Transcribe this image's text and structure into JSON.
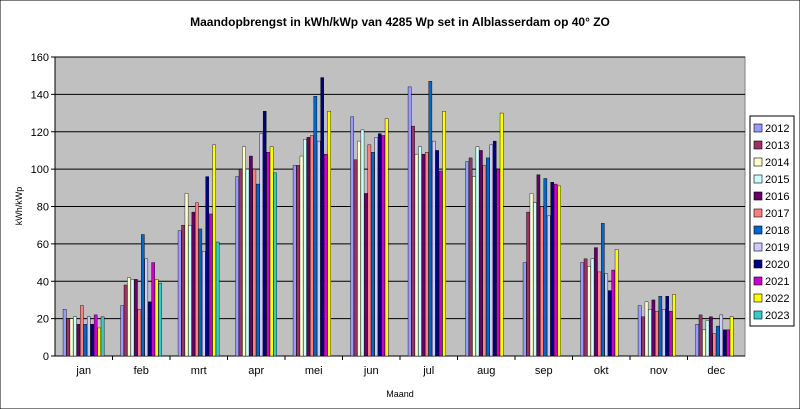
{
  "chart_data": {
    "type": "bar",
    "title": "Maandopbrengst in kWh/kWp van 4285 Wp set in Alblasserdam op 40° ZO",
    "xlabel": "Maand",
    "ylabel": "kWh/kWp",
    "ylim": [
      0,
      160
    ],
    "yticks": [
      0,
      20,
      40,
      60,
      80,
      100,
      120,
      140,
      160
    ],
    "grid": true,
    "legend_position": "right",
    "categories": [
      "jan",
      "feb",
      "mrt",
      "apr",
      "mei",
      "jun",
      "jul",
      "aug",
      "sep",
      "okt",
      "nov",
      "dec"
    ],
    "series": [
      {
        "name": "2012",
        "color": "#9999ff",
        "values": [
          25,
          27,
          67,
          96,
          102,
          128,
          144,
          104,
          50,
          50,
          27,
          17
        ]
      },
      {
        "name": "2013",
        "color": "#993366",
        "values": [
          20,
          38,
          70,
          100,
          102,
          105,
          123,
          106,
          77,
          52,
          21,
          22
        ]
      },
      {
        "name": "2014",
        "color": "#ffffcc",
        "values": [
          20,
          42,
          87,
          112,
          107,
          115,
          108,
          96,
          87,
          48,
          29,
          14
        ]
      },
      {
        "name": "2015",
        "color": "#ccffff",
        "values": [
          21,
          41,
          70,
          100,
          116,
          121,
          112,
          112,
          82,
          52,
          25,
          19
        ]
      },
      {
        "name": "2016",
        "color": "#660066",
        "values": [
          17,
          41,
          77,
          107,
          117,
          87,
          108,
          110,
          97,
          58,
          30,
          21
        ]
      },
      {
        "name": "2017",
        "color": "#ff8080",
        "values": [
          27,
          25,
          82,
          100,
          118,
          113,
          109,
          102,
          80,
          45,
          24,
          12
        ]
      },
      {
        "name": "2018",
        "color": "#0066cc",
        "values": [
          17,
          65,
          68,
          92,
          139,
          109,
          147,
          106,
          95,
          71,
          32,
          16
        ]
      },
      {
        "name": "2019",
        "color": "#ccccff",
        "values": [
          21,
          52,
          56,
          119,
          115,
          117,
          115,
          113,
          75,
          44,
          25,
          22
        ]
      },
      {
        "name": "2020",
        "color": "#000080",
        "values": [
          17,
          29,
          96,
          131,
          149,
          119,
          110,
          115,
          93,
          35,
          32,
          14
        ]
      },
      {
        "name": "2021",
        "color": "#cc00cc",
        "values": [
          22,
          50,
          76,
          109,
          108,
          118,
          99,
          100,
          92,
          46,
          24,
          14
        ]
      },
      {
        "name": "2022",
        "color": "#ffff00",
        "values": [
          15,
          41,
          113,
          112,
          131,
          127,
          131,
          130,
          91,
          57,
          33,
          21
        ]
      },
      {
        "name": "2023",
        "color": "#33cccc",
        "values": [
          21,
          39,
          61,
          98,
          null,
          null,
          null,
          null,
          null,
          null,
          null,
          null
        ]
      }
    ]
  }
}
